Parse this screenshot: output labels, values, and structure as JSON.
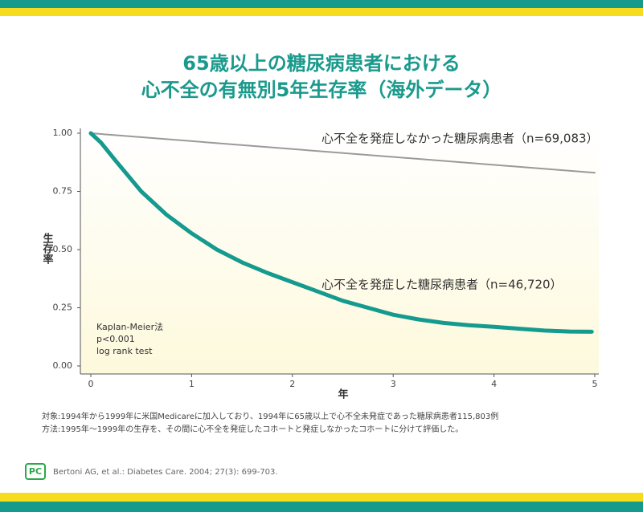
{
  "chart_data": {
    "type": "line",
    "title": [
      "65歳以上の糖尿病患者における",
      "心不全の有無別5年生存率（海外データ）"
    ],
    "xlabel": "年",
    "ylabel": "生存率",
    "xlim": [
      0,
      5
    ],
    "xticks": [
      0,
      1,
      2,
      3,
      4,
      5
    ],
    "ylim": [
      0,
      1
    ],
    "yticks": [
      {
        "value": 0,
        "label": "0.00"
      },
      0.25,
      {
        "value": 0.5,
        "label": "0.50"
      },
      0.75,
      {
        "value": 1,
        "label": "1.00"
      }
    ],
    "series": [
      {
        "name": "心不全を発症しなかった糖尿病患者（n=69,083）",
        "color": "#9a9a9a",
        "x": [
          0,
          5
        ],
        "values": [
          1.0,
          0.83
        ]
      },
      {
        "name": "心不全を発症した糖尿病患者（n=46,720）",
        "color": "#149a8e",
        "x": [
          0,
          0.1,
          0.25,
          0.5,
          0.75,
          1,
          1.25,
          1.5,
          1.75,
          2,
          2.25,
          2.5,
          2.75,
          3,
          3.25,
          3.5,
          3.75,
          4,
          4.25,
          4.5,
          4.75,
          4.97
        ],
        "values": [
          1.0,
          0.96,
          0.88,
          0.75,
          0.65,
          0.57,
          0.5,
          0.445,
          0.4,
          0.36,
          0.32,
          0.28,
          0.25,
          0.22,
          0.2,
          0.185,
          0.175,
          0.168,
          0.16,
          0.152,
          0.148,
          0.147
        ]
      }
    ],
    "annotations": [
      "Kaplan-Meier法",
      "p<0.001",
      "log rank test"
    ]
  },
  "footer": {
    "notes": [
      "対象:1994年から1999年に米国Medicareに加入しており、1994年に65歳以上で心不全未発症であった糖尿病患者115,803例",
      "方法:1995年～1999年の生存を、その間に心不全を発症したコホートと発症しなかったコホートに分けて評価した。"
    ],
    "logo": "PC",
    "citation": "Bertoni AG, et al.: Diabetes Care. 2004; 27(3): 699-703."
  }
}
